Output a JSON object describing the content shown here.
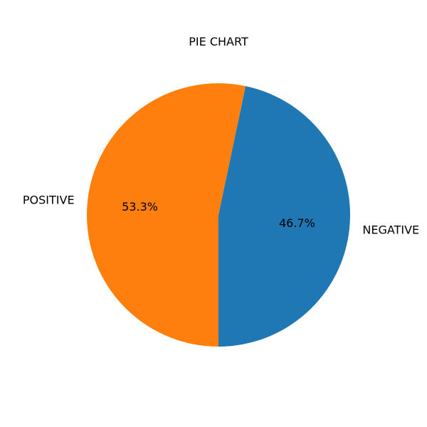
{
  "chart_data": {
    "type": "pie",
    "title": "PIE CHART",
    "slices": [
      {
        "label": "NEGATIVE",
        "value": 46.7,
        "percent_label": "46.7%",
        "color": "#1f77b4"
      },
      {
        "label": "POSITIVE",
        "value": 53.3,
        "percent_label": "53.3%",
        "color": "#ff7f0e"
      }
    ],
    "start_angle_deg": 270,
    "direction": "counterclockwise"
  }
}
